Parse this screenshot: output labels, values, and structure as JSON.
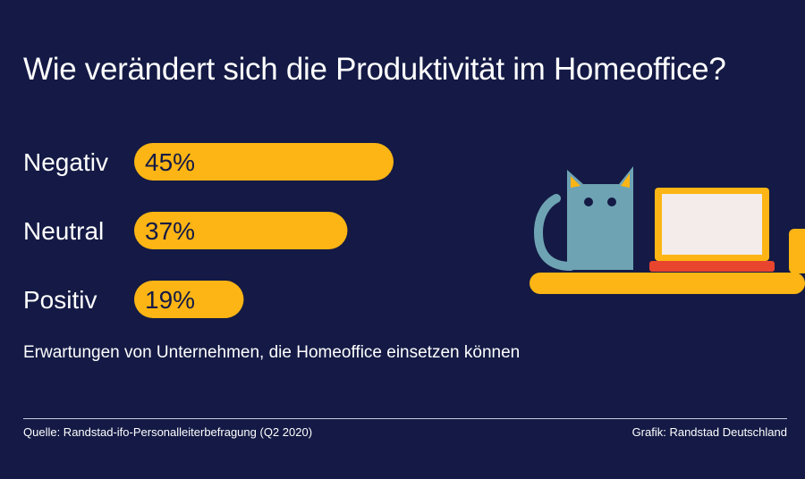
{
  "header": {
    "title": "Wie verändert sich die Produktivität im Homeoffice?"
  },
  "chart_data": {
    "type": "bar",
    "orientation": "horizontal",
    "categories": [
      "Negativ",
      "Neutral",
      "Positiv"
    ],
    "values": [
      45,
      37,
      19
    ],
    "value_labels": [
      "45%",
      "37%",
      "19%"
    ],
    "unit": "%",
    "xlim": [
      0,
      45
    ],
    "grid": false,
    "colors": {
      "bar": "#fcb514",
      "background": "#141a45",
      "label": "#ffffff",
      "value_text": "#141a45"
    }
  },
  "footer": {
    "subtitle": "Erwartungen von Unternehmen, die Homeoffice einsetzen können",
    "source": "Quelle: Randstad-ifo-Personalleiterbefragung (Q2 2020)",
    "credit": "Grafik: Randstad Deutschland"
  },
  "illustration": {
    "icons": [
      "cat-icon",
      "laptop-icon",
      "mug-icon",
      "shelf-icon"
    ],
    "colors": {
      "cat": "#6ea3b3",
      "ears": "#fcb514",
      "laptop_frame": "#fcb514",
      "laptop_screen": "#f4ecea",
      "keyboard": "#e8442e",
      "shelf": "#fcb514"
    }
  }
}
